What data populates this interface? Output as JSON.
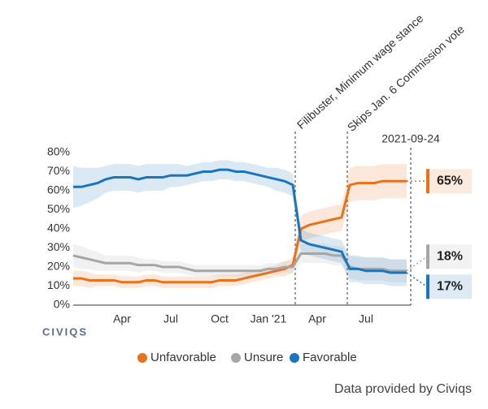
{
  "chart_data": {
    "type": "line",
    "categories": [
      null,
      null,
      null,
      null,
      null,
      null,
      "Apr",
      null,
      null,
      null,
      null,
      null,
      "Jul",
      null,
      null,
      null,
      null,
      null,
      "Oct",
      null,
      null,
      null,
      null,
      null,
      "Jan '21",
      null,
      null,
      null,
      null,
      null,
      "Apr",
      null,
      null,
      null,
      null,
      null,
      "Jul",
      null,
      null,
      null,
      null,
      null
    ],
    "series": [
      {
        "name": "Unfavorable",
        "color": "#e8711c",
        "values": [
          14,
          14,
          13,
          13,
          13,
          13,
          12,
          12,
          12,
          13,
          13,
          12,
          12,
          12,
          12,
          12,
          12,
          12,
          13,
          13,
          13,
          14,
          15,
          16,
          17,
          18,
          19,
          21,
          40,
          42,
          43,
          44,
          45,
          46,
          63,
          64,
          64,
          64,
          65,
          65,
          65,
          65
        ],
        "margin": [
          4,
          4,
          4,
          3,
          3,
          3,
          3,
          3,
          3,
          3,
          3,
          3,
          3,
          3,
          3,
          3,
          3,
          3,
          3,
          3,
          3,
          3,
          3,
          3,
          3,
          3,
          4,
          4,
          7,
          7,
          7,
          7,
          7,
          7,
          9,
          9,
          9,
          9,
          9,
          9,
          9,
          9
        ],
        "value_labels": [
          null,
          null,
          null,
          null,
          null,
          null,
          null,
          null,
          null,
          null,
          null,
          null,
          null,
          null,
          null,
          null,
          null,
          null,
          null,
          null,
          null,
          null,
          null,
          null,
          null,
          null,
          null,
          null,
          null,
          null,
          null,
          null,
          null,
          null,
          null,
          null,
          null,
          null,
          null,
          null,
          null,
          "65%"
        ]
      },
      {
        "name": "Unsure",
        "color": "#a6a6a6",
        "values": [
          26,
          25,
          24,
          23,
          22,
          22,
          22,
          22,
          21,
          21,
          21,
          20,
          20,
          20,
          19,
          18,
          18,
          18,
          18,
          18,
          18,
          18,
          18,
          18,
          19,
          19,
          20,
          20,
          27,
          27,
          27,
          27,
          26,
          26,
          20,
          19,
          19,
          19,
          19,
          18,
          18,
          18
        ],
        "margin": [
          6,
          6,
          5,
          5,
          4,
          4,
          4,
          4,
          4,
          3,
          3,
          3,
          3,
          3,
          3,
          3,
          3,
          3,
          3,
          3,
          3,
          3,
          3,
          3,
          3,
          3,
          3,
          3,
          5,
          5,
          5,
          5,
          5,
          5,
          6,
          6,
          6,
          6,
          6,
          6,
          6,
          6
        ],
        "value_labels": [
          null,
          null,
          null,
          null,
          null,
          null,
          null,
          null,
          null,
          null,
          null,
          null,
          null,
          null,
          null,
          null,
          null,
          null,
          null,
          null,
          null,
          null,
          null,
          null,
          null,
          null,
          null,
          null,
          null,
          null,
          null,
          null,
          null,
          null,
          null,
          null,
          null,
          null,
          null,
          null,
          null,
          "18%"
        ]
      },
      {
        "name": "Favorable",
        "color": "#1b75bc",
        "values": [
          62,
          62,
          63,
          64,
          66,
          67,
          67,
          67,
          66,
          67,
          67,
          67,
          68,
          68,
          68,
          69,
          70,
          70,
          71,
          71,
          70,
          70,
          69,
          68,
          67,
          66,
          65,
          63,
          34,
          32,
          31,
          30,
          29,
          28,
          19,
          19,
          18,
          18,
          18,
          17,
          17,
          17
        ],
        "margin": [
          11,
          10,
          9,
          8,
          7,
          7,
          7,
          7,
          7,
          7,
          7,
          7,
          6,
          6,
          5,
          5,
          5,
          5,
          5,
          5,
          5,
          5,
          5,
          5,
          5,
          6,
          6,
          6,
          6,
          6,
          6,
          6,
          6,
          6,
          7,
          7,
          7,
          7,
          7,
          7,
          7,
          7
        ],
        "value_labels": [
          null,
          null,
          null,
          null,
          null,
          null,
          null,
          null,
          null,
          null,
          null,
          null,
          null,
          null,
          null,
          null,
          null,
          null,
          null,
          null,
          null,
          null,
          null,
          null,
          null,
          null,
          null,
          null,
          null,
          null,
          null,
          null,
          null,
          null,
          null,
          null,
          null,
          null,
          null,
          null,
          null,
          "17%"
        ]
      }
    ],
    "ylim": [
      0,
      80
    ],
    "yticks": [
      {
        "value": 0,
        "label": "0%"
      },
      {
        "value": 10,
        "label": "10%"
      },
      {
        "value": 20,
        "label": "20%"
      },
      {
        "value": 30,
        "label": "30%"
      },
      {
        "value": 40,
        "label": "40%"
      },
      {
        "value": 50,
        "label": "50%"
      },
      {
        "value": 60,
        "label": "60%"
      },
      {
        "value": 70,
        "label": "70%"
      },
      {
        "value": 80,
        "label": "80%"
      }
    ],
    "annotations": [
      "Filibuster, Minimum wage stance",
      "Skips Jan. 6 Commission vote",
      "2021-09-24"
    ],
    "logo": "CIVIQS",
    "source": "Data provided by Civiqs"
  }
}
